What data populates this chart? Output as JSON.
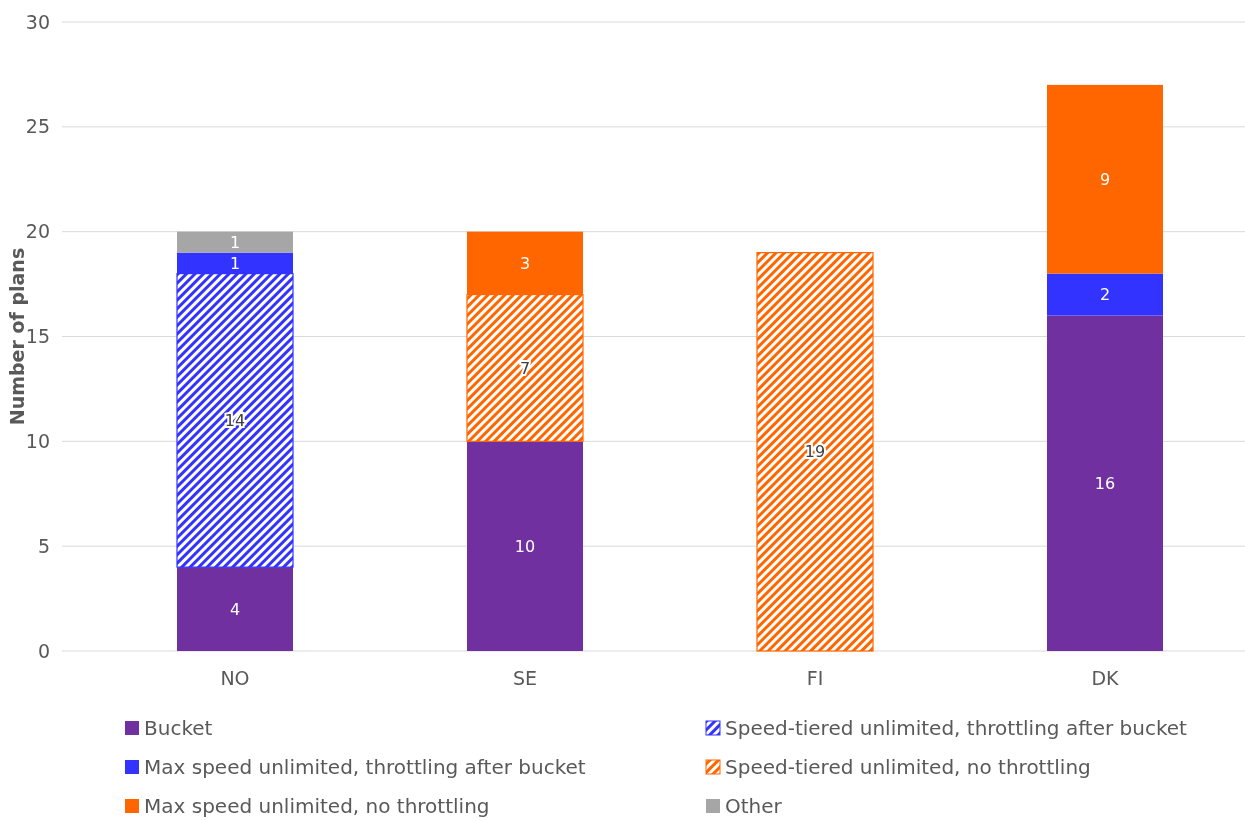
{
  "chart_data": {
    "type": "bar",
    "stacked": true,
    "ylabel": "Number of plans",
    "categories": [
      "NO",
      "SE",
      "FI",
      "DK"
    ],
    "series": [
      {
        "name": "Bucket",
        "color": "#7030a0",
        "values": [
          4,
          10,
          null,
          16
        ]
      },
      {
        "name": "Speed-tiered unlimited, throttling after bucket",
        "color": "#3333ff",
        "values": [
          14,
          null,
          null,
          null
        ]
      },
      {
        "name": "Max speed unlimited, throttling after bucket",
        "color": "#3333ff",
        "values": [
          1,
          null,
          null,
          2
        ]
      },
      {
        "name": "Speed-tiered unlimited, no throttling",
        "color": "#ff6600",
        "values": [
          null,
          7,
          19,
          null
        ]
      },
      {
        "name": "Max speed unlimited, no throttling",
        "color": "#ff6600",
        "values": [
          null,
          3,
          null,
          9
        ]
      },
      {
        "name": "Other",
        "color": "#a6a6a6",
        "values": [
          1,
          null,
          null,
          null
        ]
      }
    ],
    "ylim": [
      0,
      30
    ],
    "yticks": [
      0,
      5,
      10,
      15,
      20,
      25,
      30
    ],
    "grid": "y",
    "data_labels": true,
    "legend": "bottom"
  }
}
